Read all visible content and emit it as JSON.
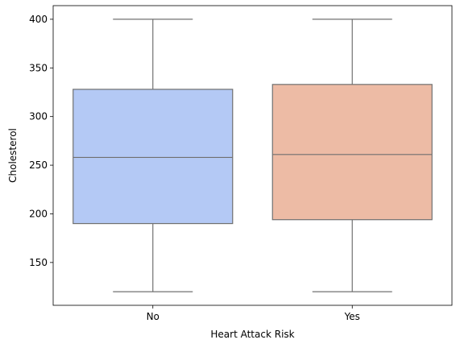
{
  "chart_data": {
    "type": "box",
    "title": "",
    "xlabel": "Heart Attack Risk",
    "ylabel": "Cholesterol",
    "categories": [
      "No",
      "Yes"
    ],
    "boxes": [
      {
        "category": "No",
        "whisker_low": 120,
        "q1": 190,
        "median": 258,
        "q3": 328,
        "whisker_high": 400
      },
      {
        "category": "Yes",
        "whisker_low": 120,
        "q1": 194,
        "median": 261,
        "q3": 333,
        "whisker_high": 400
      }
    ],
    "colors": [
      "#b4c9f5",
      "#edbba5"
    ],
    "line_color": "#707070",
    "ylim": [
      106,
      414
    ],
    "yticks": [
      150,
      200,
      250,
      300,
      350,
      400
    ],
    "grid": false,
    "legend": "none"
  }
}
